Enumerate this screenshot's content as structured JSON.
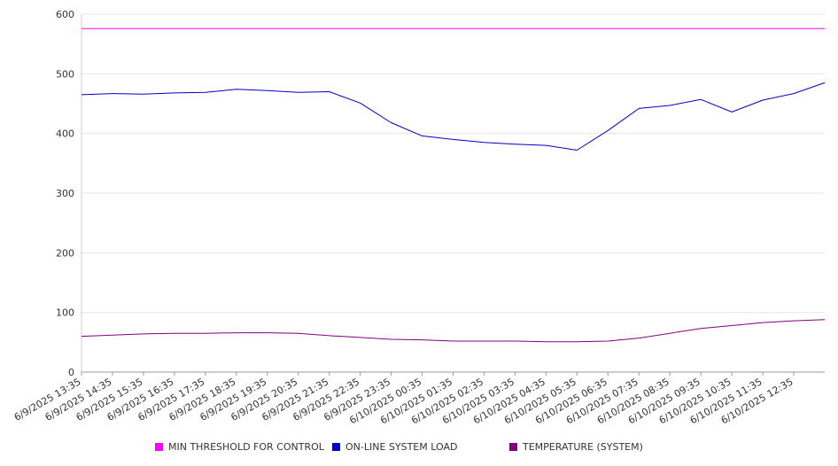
{
  "chart_data": {
    "type": "line",
    "ylim": [
      0,
      600
    ],
    "y_ticks": [
      0,
      100,
      200,
      300,
      400,
      500,
      600
    ],
    "grid": "horizontal",
    "legend_position": "bottom",
    "x_tick_labels": [
      "6/9/2025 13:35",
      "6/9/2025 14:35",
      "6/9/2025 15:35",
      "6/9/2025 16:35",
      "6/9/2025 17:35",
      "6/9/2025 18:35",
      "6/9/2025 19:35",
      "6/9/2025 20:35",
      "6/9/2025 21:35",
      "6/9/2025 22:35",
      "6/9/2025 23:35",
      "6/10/2025 00:35",
      "6/10/2025 01:35",
      "6/10/2025 02:35",
      "6/10/2025 03:35",
      "6/10/2025 04:35",
      "6/10/2025 05:35",
      "6/10/2025 06:35",
      "6/10/2025 07:35",
      "6/10/2025 08:35",
      "6/10/2025 09:35",
      "6/10/2025 10:35",
      "6/10/2025 11:35",
      "6/10/2025 12:35"
    ],
    "x": [
      "6/9/2025 13:35",
      "6/9/2025 14:35",
      "6/9/2025 15:35",
      "6/9/2025 16:35",
      "6/9/2025 17:35",
      "6/9/2025 18:35",
      "6/9/2025 19:35",
      "6/9/2025 20:35",
      "6/9/2025 21:35",
      "6/9/2025 22:35",
      "6/9/2025 23:35",
      "6/10/2025 00:35",
      "6/10/2025 01:35",
      "6/10/2025 02:35",
      "6/10/2025 03:35",
      "6/10/2025 04:35",
      "6/10/2025 05:35",
      "6/10/2025 06:35",
      "6/10/2025 07:35",
      "6/10/2025 08:35",
      "6/10/2025 09:35",
      "6/10/2025 10:35",
      "6/10/2025 11:35",
      "6/10/2025 12:35",
      "6/10/2025 13:35"
    ],
    "series": [
      {
        "name": "MIN THRESHOLD FOR CONTROL",
        "color": "#ff00ff",
        "values": [
          576,
          576,
          576,
          576,
          576,
          576,
          576,
          576,
          576,
          576,
          576,
          576,
          576,
          576,
          576,
          576,
          576,
          576,
          576,
          576,
          576,
          576,
          576,
          576,
          576
        ]
      },
      {
        "name": "ON-LINE SYSTEM LOAD",
        "color": "#0000cc",
        "values": [
          465,
          467,
          466,
          468,
          469,
          474,
          472,
          469,
          470,
          451,
          418,
          396,
          390,
          385,
          382,
          380,
          372,
          405,
          442,
          447,
          457,
          436,
          456,
          467,
          485
        ]
      },
      {
        "name": "TEMPERATURE (SYSTEM)",
        "color": "#800080",
        "values": [
          60,
          62,
          64,
          65,
          65,
          66,
          66,
          65,
          61,
          58,
          55,
          54,
          52,
          52,
          52,
          51,
          51,
          52,
          57,
          65,
          73,
          78,
          83,
          86,
          88
        ]
      }
    ]
  }
}
